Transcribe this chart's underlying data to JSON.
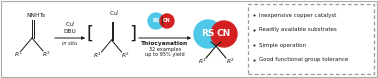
{
  "bg_color": "#ffffff",
  "border_color": "#aaaaaa",
  "text_color": "#1a1a1a",
  "cyan_color": "#4dc8e8",
  "red_color": "#d42020",
  "fig_width": 3.78,
  "fig_height": 0.78,
  "dpi": 100,
  "bullet_points": [
    "Inexpensive copper catalyst",
    "Readily available substrates",
    "Simple operation",
    "Good functional group tolerance"
  ]
}
